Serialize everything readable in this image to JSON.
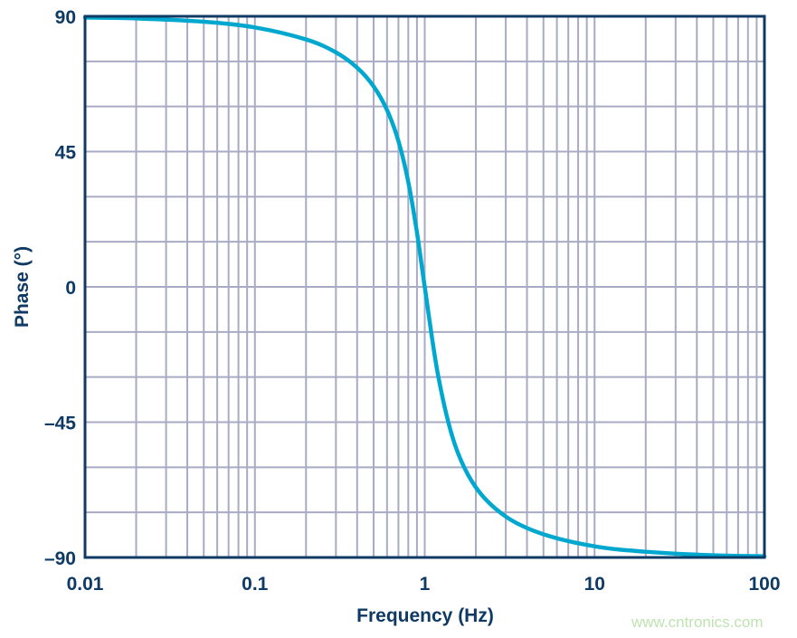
{
  "chart_data": {
    "type": "line",
    "title": "",
    "xlabel": "Frequency (Hz)",
    "ylabel": "Phase (°)",
    "xscale": "log",
    "xlim": [
      0.01,
      100
    ],
    "ylim": [
      -90,
      90
    ],
    "grid": true,
    "xticks": [
      0.01,
      0.1,
      1,
      10,
      100
    ],
    "xtick_labels": [
      "0.01",
      "0.1",
      "1",
      "10",
      "100"
    ],
    "yticks": [
      90,
      45,
      0,
      -45,
      -90
    ],
    "ytick_labels": [
      "90",
      "45",
      "0",
      "–45",
      "–90"
    ],
    "y_minor_grid_step": 15,
    "series": [
      {
        "color": "#00a8cf",
        "x": [
          0.01,
          0.02,
          0.05,
          0.1,
          0.2,
          0.3,
          0.4,
          0.5,
          0.6,
          0.7,
          0.8,
          0.9,
          1,
          1.2,
          1.5,
          2,
          3,
          5,
          10,
          20,
          50,
          100
        ],
        "y": [
          89.6,
          89.3,
          88.2,
          86.3,
          82.3,
          78.0,
          72.9,
          66.7,
          58.8,
          48.5,
          34.9,
          18.1,
          0,
          -29.6,
          -52.2,
          -66.7,
          -76.4,
          -82.3,
          -86.3,
          -88.1,
          -89.3,
          -89.6
        ]
      }
    ],
    "colors": {
      "frame": "#0f3a63",
      "grid": "#a9abc4",
      "line": "#00a8cf",
      "text": "#0f3a63"
    }
  },
  "watermark": "www.cntronics.com"
}
